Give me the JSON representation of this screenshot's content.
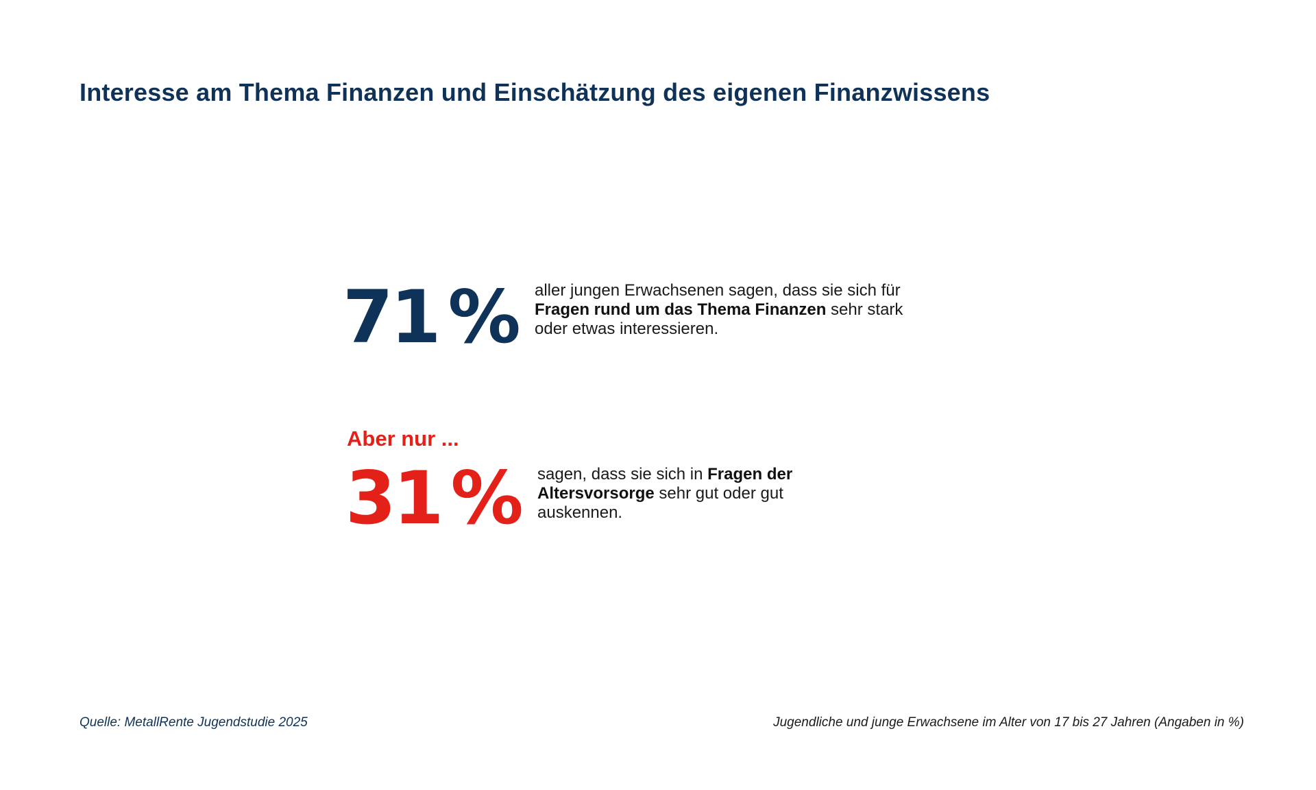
{
  "title": "Interesse am Thema Finanzen und Einschätzung des eigenen Finanzwissens",
  "colors": {
    "primary": "#0e3258",
    "accent": "#e32119"
  },
  "stats": [
    {
      "number": "71",
      "unit": "%",
      "text": {
        "part1": "aller jungen Erwachsenen sagen, dass sie sich für ",
        "bold": "Fragen rund um das Thema Finanzen",
        "part2": " sehr stark oder etwas interessieren."
      }
    },
    {
      "lead": "Aber nur ...",
      "number": "31",
      "unit": "%",
      "text": {
        "part1": "sagen, dass sie sich in ",
        "bold": "Fragen der Altersvorsorge",
        "part2": " sehr gut oder gut auskennen."
      }
    }
  ],
  "footer": {
    "source": "Quelle: MetallRente Jugendstudie 2025",
    "note": "Jugendliche und junge Erwachsene im Alter von 17 bis 27 Jahren (Angaben in %)"
  }
}
